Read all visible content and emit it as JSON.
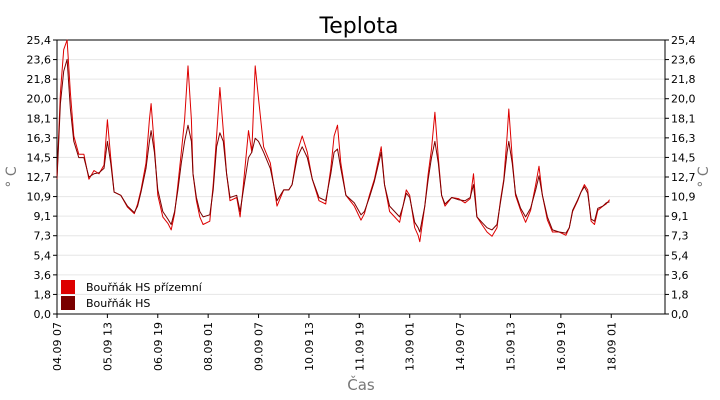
{
  "chart_data": {
    "type": "line",
    "title": "Teplota",
    "xlabel": "Čas",
    "ylabel": "° C",
    "ylabel_right": "° C",
    "ylim": [
      0,
      25.4
    ],
    "y_ticks": [
      "0,0",
      "1,8",
      "3,6",
      "5,4",
      "7,3",
      "9,1",
      "10,9",
      "12,7",
      "14,5",
      "16,3",
      "18,1",
      "20,0",
      "21,8",
      "23,6",
      "25,4"
    ],
    "x_tick_labels": [
      "04.09 07",
      "05.09 13",
      "06.09 19",
      "08.09 01",
      "09.09 07",
      "10.09 13",
      "11.09 19",
      "13.09 01",
      "14.09 07",
      "15.09 13",
      "16.09 19",
      "18.09 01"
    ],
    "x_range_hours": [
      0,
      362
    ],
    "x_tick_hours": [
      0,
      30,
      60,
      90,
      120,
      150,
      180,
      210,
      240,
      270,
      300,
      330
    ],
    "grid": "horizontal",
    "legend_position": "bottom-left",
    "series": [
      {
        "name": "Bouřňák HS přízemní",
        "color": "#dd0000",
        "points": [
          [
            0,
            12.7
          ],
          [
            2,
            20.5
          ],
          [
            4,
            24.5
          ],
          [
            6,
            25.4
          ],
          [
            8,
            20.5
          ],
          [
            10,
            16.5
          ],
          [
            13,
            14.8
          ],
          [
            16,
            14.8
          ],
          [
            19,
            12.5
          ],
          [
            22,
            13.3
          ],
          [
            25,
            13.0
          ],
          [
            28,
            13.8
          ],
          [
            30,
            18.0
          ],
          [
            32,
            14.5
          ],
          [
            34,
            11.3
          ],
          [
            38,
            11.0
          ],
          [
            42,
            9.9
          ],
          [
            46,
            9.3
          ],
          [
            48,
            10.2
          ],
          [
            50,
            11.5
          ],
          [
            53,
            14.0
          ],
          [
            55,
            18.0
          ],
          [
            56,
            19.5
          ],
          [
            58,
            15.5
          ],
          [
            60,
            11.0
          ],
          [
            63,
            9.0
          ],
          [
            66,
            8.4
          ],
          [
            68,
            7.8
          ],
          [
            70,
            9.3
          ],
          [
            72,
            12.0
          ],
          [
            74,
            15.0
          ],
          [
            76,
            18.0
          ],
          [
            78,
            23.0
          ],
          [
            80,
            18.0
          ],
          [
            81,
            13.0
          ],
          [
            83,
            10.5
          ],
          [
            85,
            9.0
          ],
          [
            87,
            8.3
          ],
          [
            91,
            8.6
          ],
          [
            93,
            12.0
          ],
          [
            95,
            16.5
          ],
          [
            97,
            21.0
          ],
          [
            99,
            17.0
          ],
          [
            101,
            13.0
          ],
          [
            103,
            10.5
          ],
          [
            107,
            10.8
          ],
          [
            109,
            9.0
          ],
          [
            111,
            12.0
          ],
          [
            114,
            17.0
          ],
          [
            116,
            15.0
          ],
          [
            118,
            23.0
          ],
          [
            120,
            20.0
          ],
          [
            123,
            15.5
          ],
          [
            127,
            14.0
          ],
          [
            131,
            10.0
          ],
          [
            135,
            11.5
          ],
          [
            138,
            11.5
          ],
          [
            140,
            12.0
          ],
          [
            143,
            15.0
          ],
          [
            146,
            16.5
          ],
          [
            149,
            15.0
          ],
          [
            152,
            12.5
          ],
          [
            156,
            10.5
          ],
          [
            160,
            10.2
          ],
          [
            163,
            13.5
          ],
          [
            165,
            16.5
          ],
          [
            167,
            17.5
          ],
          [
            169,
            14.0
          ],
          [
            172,
            11.0
          ],
          [
            177,
            10.0
          ],
          [
            181,
            8.7
          ],
          [
            183,
            9.3
          ],
          [
            186,
            11.0
          ],
          [
            189,
            12.5
          ],
          [
            193,
            15.5
          ],
          [
            195,
            12.0
          ],
          [
            198,
            9.5
          ],
          [
            201,
            9.0
          ],
          [
            204,
            8.5
          ],
          [
            206,
            10.0
          ],
          [
            208,
            11.5
          ],
          [
            210,
            11.0
          ],
          [
            213,
            8.0
          ],
          [
            215,
            7.3
          ],
          [
            216,
            6.7
          ],
          [
            219,
            10.0
          ],
          [
            221,
            13.0
          ],
          [
            223,
            15.3
          ],
          [
            225,
            18.7
          ],
          [
            227,
            14.5
          ],
          [
            229,
            11.0
          ],
          [
            231,
            10.0
          ],
          [
            235,
            10.8
          ],
          [
            239,
            10.7
          ],
          [
            243,
            10.3
          ],
          [
            246,
            10.7
          ],
          [
            248,
            13.0
          ],
          [
            250,
            9.0
          ],
          [
            253,
            8.3
          ],
          [
            256,
            7.6
          ],
          [
            259,
            7.2
          ],
          [
            262,
            8.0
          ],
          [
            264,
            10.5
          ],
          [
            266,
            12.5
          ],
          [
            268,
            16.5
          ],
          [
            269,
            19.0
          ],
          [
            271,
            14.5
          ],
          [
            273,
            11.0
          ],
          [
            276,
            9.6
          ],
          [
            279,
            8.5
          ],
          [
            282,
            9.6
          ],
          [
            285,
            12.0
          ],
          [
            287,
            13.7
          ],
          [
            289,
            11.0
          ],
          [
            292,
            8.7
          ],
          [
            295,
            7.6
          ],
          [
            299,
            7.6
          ],
          [
            303,
            7.3
          ],
          [
            305,
            8.0
          ],
          [
            307,
            9.5
          ],
          [
            310,
            10.5
          ],
          [
            312,
            11.3
          ],
          [
            314,
            12.0
          ],
          [
            316,
            11.5
          ],
          [
            318,
            8.6
          ],
          [
            320,
            8.3
          ],
          [
            322,
            9.6
          ],
          [
            325,
            10.0
          ],
          [
            327,
            10.2
          ],
          [
            329,
            10.6
          ]
        ]
      },
      {
        "name": "Bouřňák HS",
        "color": "#7a0000",
        "points": [
          [
            0,
            12.5
          ],
          [
            2,
            19.5
          ],
          [
            4,
            22.5
          ],
          [
            6,
            23.6
          ],
          [
            8,
            19.0
          ],
          [
            10,
            16.0
          ],
          [
            13,
            14.5
          ],
          [
            16,
            14.5
          ],
          [
            19,
            12.7
          ],
          [
            22,
            13.0
          ],
          [
            25,
            13.1
          ],
          [
            28,
            13.5
          ],
          [
            30,
            16.0
          ],
          [
            32,
            14.0
          ],
          [
            34,
            11.3
          ],
          [
            38,
            11.0
          ],
          [
            42,
            10.0
          ],
          [
            46,
            9.4
          ],
          [
            48,
            10.0
          ],
          [
            50,
            11.3
          ],
          [
            53,
            13.5
          ],
          [
            55,
            16.0
          ],
          [
            56,
            17.0
          ],
          [
            58,
            15.0
          ],
          [
            60,
            11.5
          ],
          [
            63,
            9.5
          ],
          [
            66,
            8.8
          ],
          [
            68,
            8.3
          ],
          [
            70,
            9.5
          ],
          [
            72,
            11.5
          ],
          [
            74,
            14.0
          ],
          [
            76,
            16.0
          ],
          [
            78,
            17.5
          ],
          [
            80,
            16.0
          ],
          [
            81,
            13.0
          ],
          [
            83,
            10.8
          ],
          [
            85,
            9.5
          ],
          [
            87,
            9.0
          ],
          [
            91,
            9.2
          ],
          [
            93,
            11.5
          ],
          [
            95,
            15.5
          ],
          [
            97,
            16.8
          ],
          [
            99,
            16.0
          ],
          [
            101,
            13.0
          ],
          [
            103,
            10.8
          ],
          [
            107,
            11.0
          ],
          [
            109,
            9.5
          ],
          [
            111,
            11.5
          ],
          [
            114,
            14.5
          ],
          [
            116,
            15.0
          ],
          [
            118,
            16.3
          ],
          [
            120,
            16.0
          ],
          [
            123,
            15.0
          ],
          [
            127,
            13.5
          ],
          [
            131,
            10.5
          ],
          [
            135,
            11.5
          ],
          [
            138,
            11.5
          ],
          [
            140,
            12.0
          ],
          [
            143,
            14.5
          ],
          [
            146,
            15.5
          ],
          [
            149,
            14.5
          ],
          [
            152,
            12.5
          ],
          [
            156,
            10.8
          ],
          [
            160,
            10.5
          ],
          [
            163,
            13.0
          ],
          [
            165,
            15.0
          ],
          [
            167,
            15.3
          ],
          [
            169,
            13.5
          ],
          [
            172,
            11.0
          ],
          [
            177,
            10.3
          ],
          [
            181,
            9.2
          ],
          [
            183,
            9.5
          ],
          [
            186,
            10.8
          ],
          [
            189,
            12.3
          ],
          [
            193,
            15.0
          ],
          [
            195,
            12.0
          ],
          [
            198,
            10.0
          ],
          [
            201,
            9.5
          ],
          [
            204,
            9.0
          ],
          [
            206,
            10.0
          ],
          [
            208,
            11.2
          ],
          [
            210,
            10.8
          ],
          [
            213,
            8.5
          ],
          [
            215,
            8.0
          ],
          [
            216,
            7.6
          ],
          [
            219,
            10.0
          ],
          [
            221,
            12.5
          ],
          [
            223,
            14.5
          ],
          [
            225,
            16.0
          ],
          [
            227,
            14.0
          ],
          [
            229,
            11.0
          ],
          [
            231,
            10.2
          ],
          [
            235,
            10.8
          ],
          [
            239,
            10.6
          ],
          [
            243,
            10.5
          ],
          [
            246,
            10.8
          ],
          [
            248,
            12.0
          ],
          [
            250,
            9.0
          ],
          [
            253,
            8.5
          ],
          [
            256,
            8.0
          ],
          [
            259,
            7.8
          ],
          [
            262,
            8.3
          ],
          [
            264,
            10.3
          ],
          [
            266,
            12.3
          ],
          [
            268,
            15.0
          ],
          [
            269,
            16.0
          ],
          [
            271,
            14.0
          ],
          [
            273,
            11.2
          ],
          [
            276,
            9.8
          ],
          [
            279,
            9.0
          ],
          [
            282,
            9.8
          ],
          [
            285,
            11.5
          ],
          [
            287,
            12.8
          ],
          [
            289,
            11.0
          ],
          [
            292,
            9.0
          ],
          [
            295,
            7.8
          ],
          [
            299,
            7.6
          ],
          [
            303,
            7.5
          ],
          [
            305,
            8.0
          ],
          [
            307,
            9.6
          ],
          [
            310,
            10.6
          ],
          [
            312,
            11.3
          ],
          [
            314,
            11.8
          ],
          [
            316,
            11.2
          ],
          [
            318,
            8.8
          ],
          [
            320,
            8.6
          ],
          [
            322,
            9.8
          ],
          [
            325,
            10.0
          ],
          [
            327,
            10.3
          ],
          [
            329,
            10.4
          ]
        ]
      }
    ]
  }
}
